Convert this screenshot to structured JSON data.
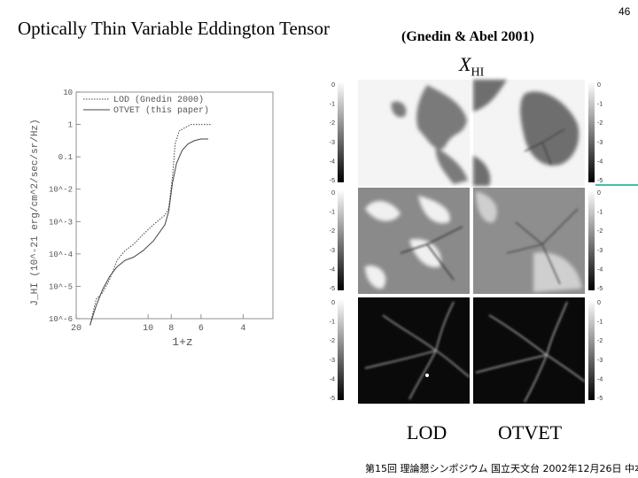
{
  "page_number": "46",
  "title": "Optically Thin Variable Eddington Tensor",
  "reference": "(Gnedin & Abel 2001)",
  "panel_header": {
    "symbol": "X",
    "subscript": "HI"
  },
  "column_labels": [
    "LOD",
    "OTVET"
  ],
  "footer": "第15回 理論懇シンポジウム 国立天文台 2002年12月26日 中本泰史",
  "colorbar_ticks": [
    "0",
    "-1",
    "-2",
    "-3",
    "-4",
    "-5"
  ],
  "chart_data": {
    "type": "line",
    "xlabel": "1+z",
    "ylabel": "J_HI (10^-21 erg/cm^2/sec/sr/Hz)",
    "xscale": "log",
    "yscale": "log",
    "x_ticks": [
      "20",
      "10",
      "8",
      "6",
      "4"
    ],
    "y_ticks": [
      "10",
      "1",
      "0.1",
      "10^-2",
      "10^-3",
      "10^-4",
      "10^-5",
      "10^-6"
    ],
    "series": [
      {
        "name": "LOD (Gnedin 2000)",
        "style": "dotted",
        "x": [
          17.5,
          16.5,
          15.5,
          14.5,
          13.5,
          12.5,
          11.5,
          10.5,
          9.5,
          8.5,
          8.2,
          7.9,
          7.7,
          7.4,
          7.0,
          6.6,
          6.2,
          5.8,
          5.4
        ],
        "y": [
          -6.2,
          -5.4,
          -5.2,
          -4.8,
          -4.2,
          -3.9,
          -3.7,
          -3.4,
          -3.1,
          -2.8,
          -2.6,
          -1.6,
          -0.6,
          -0.2,
          -0.1,
          0.0,
          0.0,
          0.0,
          0.0
        ]
      },
      {
        "name": "OTVET (this paper)",
        "style": "solid",
        "x": [
          17.5,
          16.5,
          15.5,
          14.5,
          13.5,
          12.5,
          11.5,
          10.5,
          9.5,
          8.5,
          8.2,
          7.9,
          7.6,
          7.2,
          6.8,
          6.4,
          6.0,
          5.6
        ],
        "y": [
          -6.2,
          -5.6,
          -5.1,
          -4.7,
          -4.4,
          -4.2,
          -4.1,
          -3.9,
          -3.6,
          -3.1,
          -2.7,
          -1.8,
          -1.2,
          -0.8,
          -0.6,
          -0.5,
          -0.45,
          -0.45
        ]
      }
    ]
  }
}
